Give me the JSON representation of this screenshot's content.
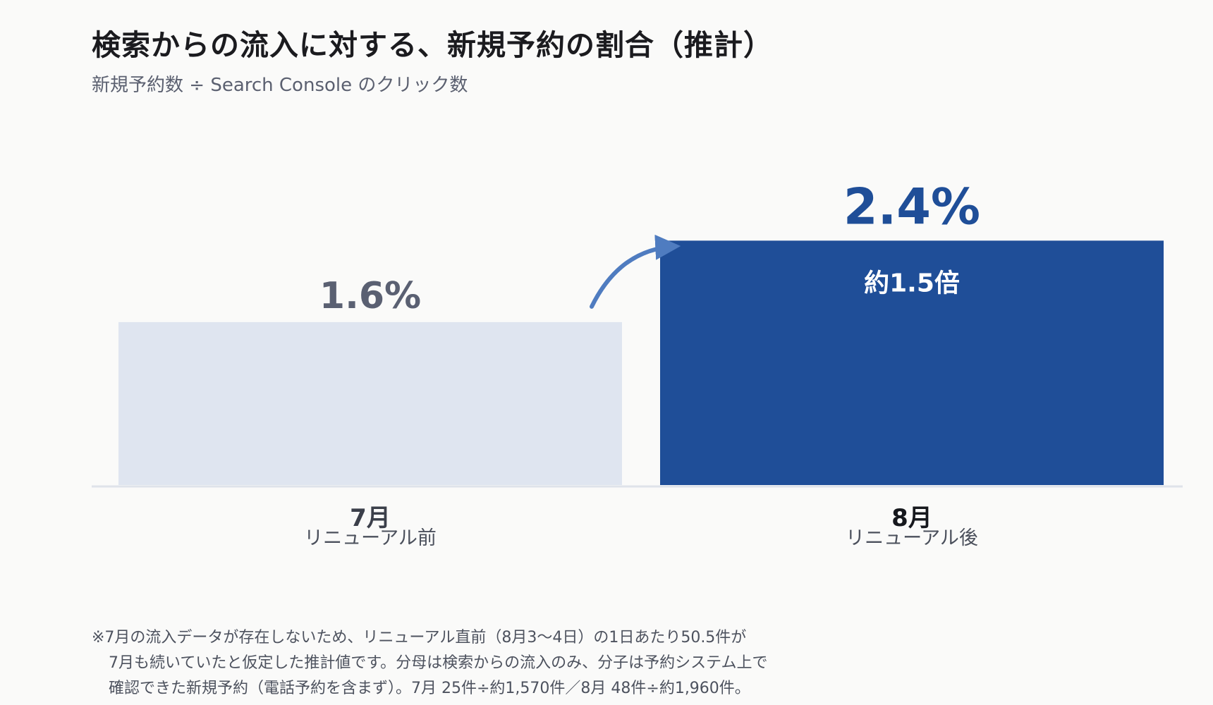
{
  "chart_data": {
    "type": "bar",
    "title": "検索からの流入に対する、新規予約の割合（推計）",
    "subtitle": "新規予約数 ÷ Search Console のクリック数",
    "categories": [
      "7月",
      "8月"
    ],
    "category_sublabels": [
      "リニューアル前",
      "リニューアル後"
    ],
    "values": [
      1.6,
      2.4
    ],
    "value_labels": [
      "1.6%",
      "2.4%"
    ],
    "unit": "%",
    "ylim": [
      0,
      3.6
    ],
    "annotation": "約1.5倍",
    "bar_colors": [
      "#dfe5f0",
      "#1f4e98"
    ],
    "label_colors": [
      "#5a6072",
      "#1f4e98"
    ],
    "arrow_color": "#4f7cc0",
    "axis_color": "#dfe3ea",
    "grid": false,
    "legend": false
  },
  "footnote": {
    "line1": "※7月の流入データが存在しないため、リニューアル直前（8月3〜4日）の1日あたり50.5件が",
    "line2": "7月も続いていたと仮定した推計値です。分母は検索からの流入のみ、分子は予約システム上で",
    "line3": "確認できた新規予約（電話予約を含まず）。7月 25件÷約1,570件／8月 48件÷約1,960件。"
  }
}
